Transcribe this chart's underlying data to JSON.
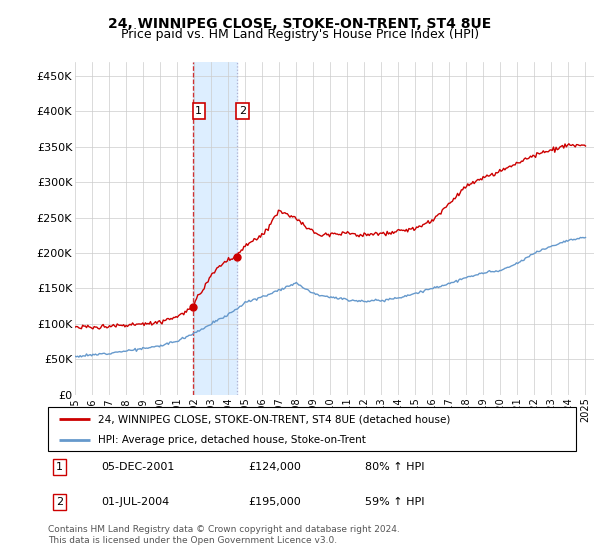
{
  "title": "24, WINNIPEG CLOSE, STOKE-ON-TRENT, ST4 8UE",
  "subtitle": "Price paid vs. HM Land Registry's House Price Index (HPI)",
  "title_fontsize": 10,
  "subtitle_fontsize": 9,
  "ylabel_ticks": [
    "£0",
    "£50K",
    "£100K",
    "£150K",
    "£200K",
    "£250K",
    "£300K",
    "£350K",
    "£400K",
    "£450K"
  ],
  "ytick_values": [
    0,
    50000,
    100000,
    150000,
    200000,
    250000,
    300000,
    350000,
    400000,
    450000
  ],
  "ylim": [
    0,
    470000
  ],
  "xlim_start": 1995.0,
  "xlim_end": 2025.5,
  "legend_line1": "24, WINNIPEG CLOSE, STOKE-ON-TRENT, ST4 8UE (detached house)",
  "legend_line2": "HPI: Average price, detached house, Stoke-on-Trent",
  "sale1_date": 2001.92,
  "sale1_price": 124000,
  "sale1_label": "1",
  "sale2_date": 2004.5,
  "sale2_price": 195000,
  "sale2_label": "2",
  "red_color": "#cc0000",
  "blue_color": "#6699cc",
  "shade_color": "#ddeeff",
  "footnote": "Contains HM Land Registry data © Crown copyright and database right 2024.\nThis data is licensed under the Open Government Licence v3.0.",
  "xtick_years": [
    1995,
    1996,
    1997,
    1998,
    1999,
    2000,
    2001,
    2002,
    2003,
    2004,
    2005,
    2006,
    2007,
    2008,
    2009,
    2010,
    2011,
    2012,
    2013,
    2014,
    2015,
    2016,
    2017,
    2018,
    2019,
    2020,
    2021,
    2022,
    2023,
    2024,
    2025
  ],
  "hpi_key_years": [
    1995,
    1996,
    1997,
    1998,
    1999,
    2000,
    2001,
    2002,
    2003,
    2004,
    2005,
    2006,
    2007,
    2008,
    2009,
    2010,
    2011,
    2012,
    2013,
    2014,
    2015,
    2016,
    2017,
    2018,
    2019,
    2020,
    2021,
    2022,
    2023,
    2024,
    2025
  ],
  "hpi_key_vals": [
    54000,
    56000,
    59000,
    62000,
    65000,
    69000,
    76000,
    87000,
    100000,
    113000,
    130000,
    138000,
    148000,
    158000,
    143000,
    138000,
    134000,
    132000,
    133000,
    137000,
    143000,
    150000,
    157000,
    165000,
    172000,
    175000,
    185000,
    200000,
    210000,
    218000,
    222000
  ],
  "red_key_years": [
    1995,
    1996,
    1997,
    1998,
    1999,
    2000,
    2001,
    2001.92,
    2002.5,
    2003,
    2003.5,
    2004.0,
    2004.5,
    2005,
    2006,
    2007,
    2007.5,
    2008,
    2008.5,
    2009,
    2009.5,
    2010,
    2011,
    2012,
    2013,
    2014,
    2015,
    2016,
    2017,
    2018,
    2019,
    2020,
    2021,
    2022,
    2023,
    2024,
    2025
  ],
  "red_key_vals": [
    95000,
    95000,
    97000,
    98000,
    100000,
    103000,
    110000,
    124000,
    148000,
    168000,
    182000,
    190000,
    195000,
    210000,
    225000,
    260000,
    255000,
    248000,
    238000,
    230000,
    225000,
    228000,
    228000,
    225000,
    227000,
    230000,
    235000,
    245000,
    270000,
    295000,
    305000,
    315000,
    328000,
    338000,
    345000,
    352000,
    350000
  ]
}
